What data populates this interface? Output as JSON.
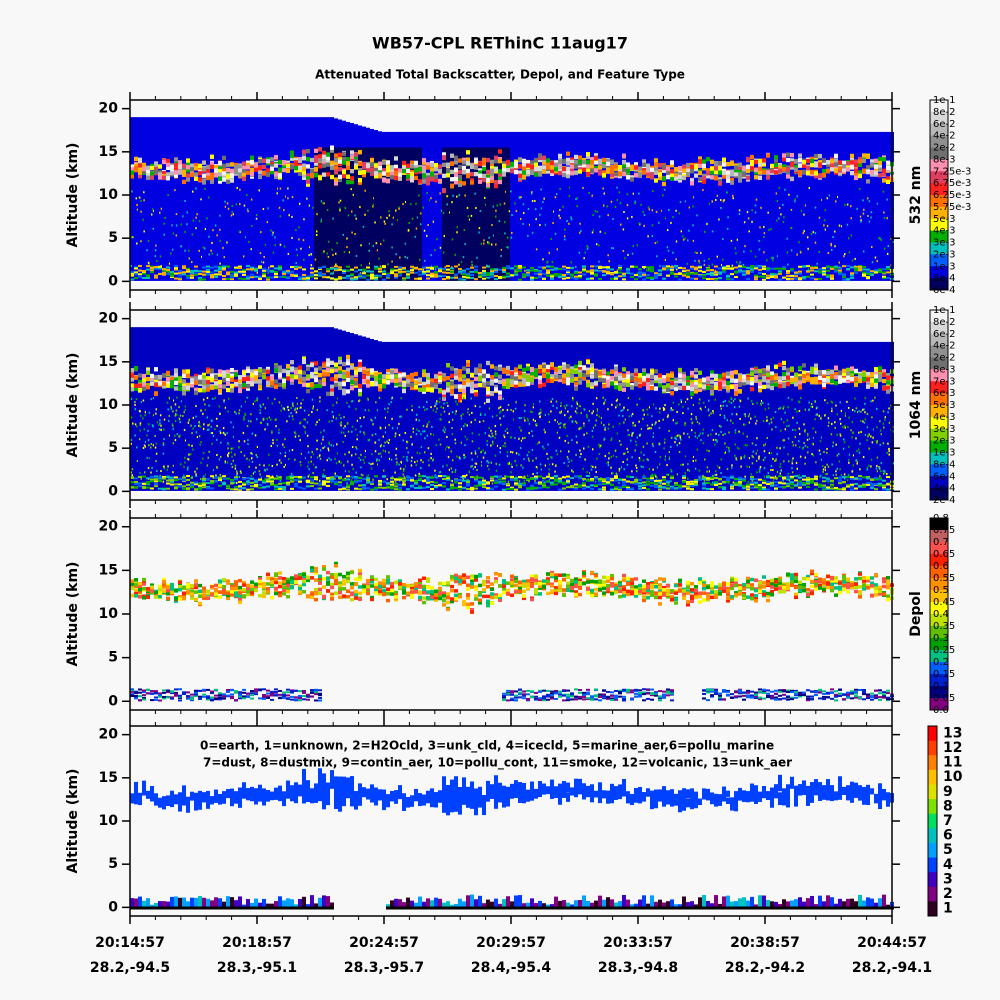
{
  "title": "WB57-CPL REThinC 11aug17",
  "subtitle": "Attenuated Total Backscatter, Depol, and Feature Type",
  "x_axis": {
    "times": [
      "20:14:57",
      "20:18:57",
      "20:24:57",
      "20:29:57",
      "20:33:57",
      "20:38:57",
      "20:44:57"
    ],
    "locations": [
      "28.2,-94.5",
      "28.3,-95.1",
      "28.3,-95.7",
      "28.4,-95.4",
      "28.3,-94.8",
      "28.2,-94.2",
      "28.2,-94.1"
    ]
  },
  "chart_data": [
    {
      "type": "curtain",
      "ylabel": "Altitude (km)",
      "ylim": [
        -1,
        21
      ],
      "yticks": [
        0,
        5,
        10,
        15,
        20
      ],
      "colorbar": {
        "label": "532 nm",
        "levels": [
          "1e-1",
          "8e-2",
          "6e-2",
          "4e-2",
          "2e-2",
          "8e-3",
          "7.25e-3",
          "6.75e-3",
          "6.25e-3",
          "5.75e-3",
          "5e-3",
          "4e-3",
          "3e-3",
          "2e-3",
          "1e-3",
          "8e-4",
          "6e-4"
        ],
        "colors": [
          "#f4f4f4",
          "#d8d8d8",
          "#b8b8b8",
          "#909090",
          "#707070",
          "#ff90b0",
          "#e04060",
          "#ff2020",
          "#ff7000",
          "#ffb000",
          "#ffff00",
          "#00b000",
          "#00c0c0",
          "#0060ff",
          "#0000e0",
          "#000060"
        ]
      }
    },
    {
      "type": "curtain",
      "ylabel": "Altitude (km)",
      "ylim": [
        -1,
        21
      ],
      "yticks": [
        0,
        5,
        10,
        15,
        20
      ],
      "colorbar": {
        "label": "1064 nm",
        "levels": [
          "1e-1",
          "8e-2",
          "6e-2",
          "4e-2",
          "2e-2",
          "8e-3",
          "7e-3",
          "6e-3",
          "5e-3",
          "4e-3",
          "3e-3",
          "2e-3",
          "1e-3",
          "8e-4",
          "6e-4",
          "4e-4",
          "2e-4"
        ],
        "colors": [
          "#f4f4f4",
          "#d8d8d8",
          "#b8b8b8",
          "#909090",
          "#707070",
          "#ff90b0",
          "#ff2020",
          "#ff7000",
          "#ffb000",
          "#ffff00",
          "#80d000",
          "#00b000",
          "#00c0c0",
          "#0060ff",
          "#0000c0",
          "#000060"
        ]
      }
    },
    {
      "type": "curtain",
      "ylabel": "Altitude (km)",
      "ylim": [
        -1,
        21
      ],
      "yticks": [
        0,
        5,
        10,
        15,
        20
      ],
      "colorbar": {
        "label": "Depol",
        "levels": [
          "0.8",
          "0.75",
          "0.7",
          "0.65",
          "0.6",
          "0.55",
          "0.5",
          "0.45",
          "0.4",
          "0.35",
          "0.3",
          "0.25",
          "0.2",
          "0.15",
          "0.1",
          "0.05",
          "0.0"
        ],
        "colors": [
          "#000000",
          "#c06060",
          "#ff5050",
          "#ff2000",
          "#ff6000",
          "#ff9000",
          "#ffc000",
          "#ffff00",
          "#c0e000",
          "#60c000",
          "#00a000",
          "#00c080",
          "#0060ff",
          "#0020d0",
          "#000080",
          "#800080"
        ]
      }
    },
    {
      "type": "curtain",
      "ylabel": "Altitude (km)",
      "ylim": [
        -1,
        21
      ],
      "yticks": [
        0,
        5,
        10,
        15,
        20
      ],
      "legend": [
        "0=earth, 1=unknown, 2=H2Ocld, 3=unk_cld, 4=icecld, 5=marine_aer,6=pollu_marine",
        "7=dust, 8=dustmix, 9=contin_aer, 10=pollu_cont, 11=smoke, 12=volcanic, 13=unk_aer"
      ],
      "colorbar": {
        "ticks": [
          13,
          12,
          11,
          10,
          9,
          8,
          7,
          6,
          5,
          4,
          3,
          2,
          1
        ],
        "colors": [
          "#ff0000",
          "#ff4000",
          "#ff8000",
          "#ffc000",
          "#e0e000",
          "#80e000",
          "#00e060",
          "#00c0c0",
          "#00a0ff",
          "#0040ff",
          "#4000c0",
          "#800080",
          "#300020"
        ]
      }
    }
  ]
}
